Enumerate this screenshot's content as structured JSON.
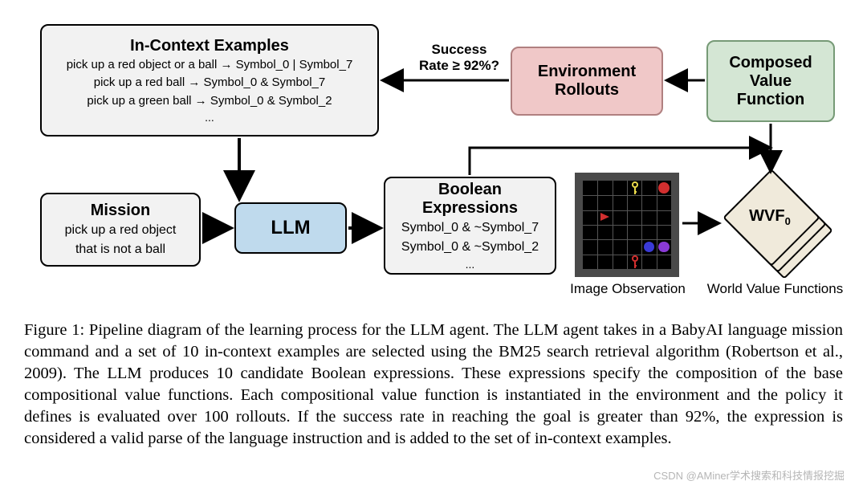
{
  "boxes": {
    "ctx": {
      "title": "In-Context Examples",
      "lines": [
        "pick up a red object or a ball → Symbol_0 | Symbol_7",
        "pick up a red ball → Symbol_0 & Symbol_7",
        "pick up a green ball → Symbol_0 & Symbol_2"
      ],
      "ellipsis": "..."
    },
    "mission": {
      "title": "Mission",
      "lines": [
        "pick up a red object",
        "that is not a ball"
      ]
    },
    "llm": {
      "title": "LLM"
    },
    "bool": {
      "title": "Boolean",
      "title2": "Expressions",
      "lines": [
        "Symbol_0 & ~Symbol_7",
        "Symbol_0 & ~Symbol_2"
      ],
      "ellipsis": "..."
    },
    "env": {
      "title1": "Environment",
      "title2": "Rollouts"
    },
    "cvf": {
      "title1": "Composed",
      "title2": "Value",
      "title3": "Function"
    }
  },
  "edge_label": {
    "line1": "Success",
    "line2": "Rate ≥ 92%?"
  },
  "imgobs_caption": "Image Observation",
  "wvf_caption": "World Value Functions",
  "wvf_label": "WVF",
  "wvf_sub": "0",
  "grid": {
    "size": 6,
    "bg": "#000000",
    "frame": "#4a4a4a",
    "line": "#555555",
    "icons": [
      {
        "type": "key",
        "color": "#e8d84a",
        "row": 0,
        "col": 3
      },
      {
        "type": "circle",
        "color": "#d22f2f",
        "row": 0,
        "col": 5
      },
      {
        "type": "triangle",
        "color": "#d22f2f",
        "row": 2,
        "col": 1
      },
      {
        "type": "circle",
        "color": "#3a3ad6",
        "row": 4,
        "col": 4
      },
      {
        "type": "circle",
        "color": "#8a3ad6",
        "row": 4,
        "col": 5
      },
      {
        "type": "key",
        "color": "#d22f2f",
        "row": 5,
        "col": 3
      }
    ]
  },
  "colors": {
    "ctx_bg": "#f2f2f2",
    "llm_bg": "#bfdaed",
    "env_bg": "#f0c8c8",
    "cvf_bg": "#d4e6d4",
    "wvf_bg": "#f0eadb",
    "border": "#000000"
  },
  "caption": "Figure 1: Pipeline diagram of the learning process for the LLM agent. The LLM agent takes in a BabyAI language mission command and a set of 10 in-context examples are selected using the BM25 search retrieval algorithm (Robertson et al., 2009). The LLM produces 10 candidate Boolean expressions. These expressions specify the composition of the base compositional value functions. Each compositional value function is instantiated in the environment and the policy it defines is evaluated over 100 rollouts. If the success rate in reaching the goal is greater than 92%, the expression is considered a valid parse of the language instruction and is added to the set of in-context examples.",
  "watermark": "CSDN @AMiner学术搜索和科技情报挖掘"
}
